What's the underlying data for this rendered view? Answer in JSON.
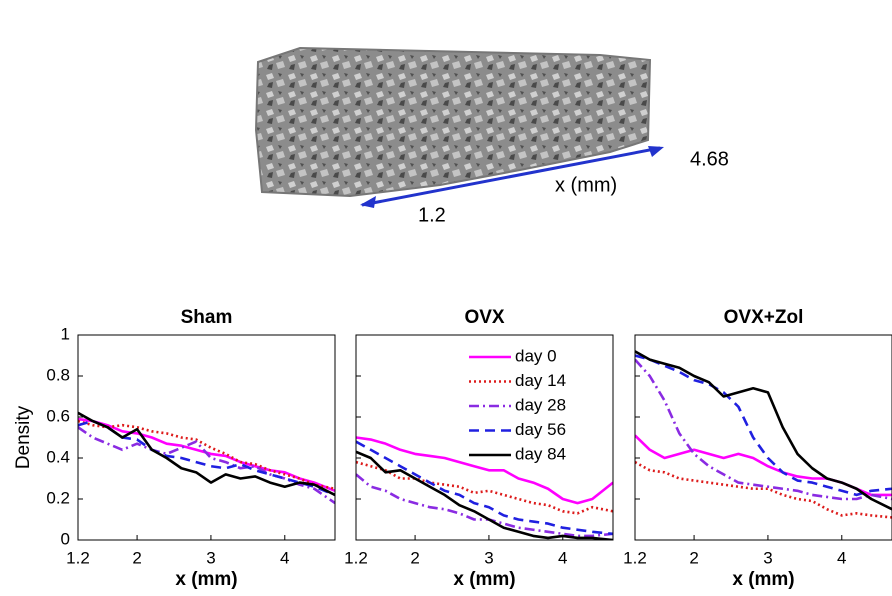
{
  "specimen": {
    "axis_label": "x (mm)",
    "start": 1.2,
    "end": 4.68
  },
  "chart_data": [
    {
      "type": "line",
      "title": "Sham",
      "xlabel": "x (mm)",
      "ylabel": "Density",
      "x": [
        1.2,
        1.4,
        1.6,
        1.8,
        2.0,
        2.2,
        2.4,
        2.6,
        2.8,
        3.0,
        3.2,
        3.4,
        3.6,
        3.8,
        4.0,
        4.2,
        4.4,
        4.68
      ],
      "xlim": [
        1.2,
        4.68
      ],
      "ylim": [
        0,
        1
      ],
      "xticks": [
        1.2,
        2,
        3,
        4
      ],
      "yticks": [
        0,
        0.2,
        0.4,
        0.6,
        0.8,
        1
      ],
      "show_yticklabels": true,
      "legend": false,
      "series": [
        {
          "color": "#ff00ff",
          "style": "solid",
          "values": [
            0.59,
            0.58,
            0.56,
            0.53,
            0.52,
            0.5,
            0.47,
            0.46,
            0.44,
            0.42,
            0.41,
            0.38,
            0.36,
            0.34,
            0.33,
            0.3,
            0.28,
            0.24
          ]
        },
        {
          "color": "#dd1c1c",
          "style": "dotted",
          "values": [
            0.58,
            0.56,
            0.55,
            0.56,
            0.55,
            0.53,
            0.52,
            0.5,
            0.49,
            0.45,
            0.42,
            0.38,
            0.37,
            0.34,
            0.32,
            0.3,
            0.27,
            0.25
          ]
        },
        {
          "color": "#8a2be2",
          "style": "dashdot",
          "values": [
            0.55,
            0.5,
            0.47,
            0.44,
            0.47,
            0.44,
            0.42,
            0.45,
            0.48,
            0.4,
            0.38,
            0.35,
            0.36,
            0.32,
            0.3,
            0.27,
            0.25,
            0.18
          ]
        },
        {
          "color": "#2020e0",
          "style": "dashed",
          "values": [
            0.56,
            0.58,
            0.55,
            0.5,
            0.49,
            0.44,
            0.41,
            0.4,
            0.38,
            0.36,
            0.35,
            0.37,
            0.34,
            0.32,
            0.3,
            0.28,
            0.26,
            0.22
          ]
        },
        {
          "color": "#000000",
          "style": "solid",
          "values": [
            0.62,
            0.58,
            0.55,
            0.5,
            0.54,
            0.44,
            0.4,
            0.35,
            0.33,
            0.28,
            0.32,
            0.3,
            0.31,
            0.28,
            0.26,
            0.28,
            0.27,
            0.22
          ]
        }
      ]
    },
    {
      "type": "line",
      "title": "OVX",
      "xlabel": "x (mm)",
      "x": [
        1.2,
        1.4,
        1.6,
        1.8,
        2.0,
        2.2,
        2.4,
        2.6,
        2.8,
        3.0,
        3.2,
        3.4,
        3.6,
        3.8,
        4.0,
        4.2,
        4.4,
        4.68
      ],
      "xlim": [
        1.2,
        4.68
      ],
      "ylim": [
        0,
        1
      ],
      "xticks": [
        1.2,
        2,
        3,
        4
      ],
      "yticks": [
        0,
        0.2,
        0.4,
        0.6,
        0.8,
        1
      ],
      "show_yticklabels": false,
      "legend": true,
      "series": [
        {
          "name": "day 0",
          "color": "#ff00ff",
          "style": "solid",
          "values": [
            0.5,
            0.49,
            0.47,
            0.44,
            0.42,
            0.41,
            0.4,
            0.38,
            0.36,
            0.34,
            0.34,
            0.3,
            0.28,
            0.25,
            0.2,
            0.18,
            0.2,
            0.28
          ]
        },
        {
          "name": "day 14",
          "color": "#dd1c1c",
          "style": "dotted",
          "values": [
            0.38,
            0.36,
            0.34,
            0.3,
            0.3,
            0.28,
            0.27,
            0.26,
            0.23,
            0.24,
            0.22,
            0.2,
            0.18,
            0.17,
            0.14,
            0.13,
            0.16,
            0.14
          ]
        },
        {
          "name": "day 28",
          "color": "#8a2be2",
          "style": "dashdot",
          "values": [
            0.32,
            0.26,
            0.24,
            0.2,
            0.18,
            0.16,
            0.15,
            0.13,
            0.1,
            0.1,
            0.08,
            0.06,
            0.05,
            0.04,
            0.03,
            0.02,
            0.02,
            0.03
          ]
        },
        {
          "name": "day 56",
          "color": "#2020e0",
          "style": "dashed",
          "values": [
            0.48,
            0.44,
            0.4,
            0.36,
            0.32,
            0.28,
            0.24,
            0.22,
            0.18,
            0.16,
            0.12,
            0.1,
            0.09,
            0.08,
            0.06,
            0.05,
            0.04,
            0.03
          ]
        },
        {
          "name": "day 84",
          "color": "#000000",
          "style": "solid",
          "values": [
            0.43,
            0.4,
            0.33,
            0.34,
            0.3,
            0.26,
            0.22,
            0.17,
            0.14,
            0.1,
            0.06,
            0.04,
            0.02,
            0.01,
            0.02,
            0.01,
            0.01,
            0.0
          ]
        }
      ]
    },
    {
      "type": "line",
      "title": "OVX+Zol",
      "xlabel": "x (mm)",
      "x": [
        1.2,
        1.4,
        1.6,
        1.8,
        2.0,
        2.2,
        2.4,
        2.6,
        2.8,
        3.0,
        3.2,
        3.4,
        3.6,
        3.8,
        4.0,
        4.2,
        4.4,
        4.68
      ],
      "xlim": [
        1.2,
        4.68
      ],
      "ylim": [
        0,
        1
      ],
      "xticks": [
        1.2,
        2,
        3,
        4
      ],
      "yticks": [
        0,
        0.2,
        0.4,
        0.6,
        0.8,
        1
      ],
      "show_yticklabels": false,
      "legend": false,
      "series": [
        {
          "color": "#ff00ff",
          "style": "solid",
          "values": [
            0.51,
            0.44,
            0.4,
            0.42,
            0.44,
            0.42,
            0.4,
            0.42,
            0.4,
            0.36,
            0.33,
            0.31,
            0.3,
            0.3,
            0.28,
            0.25,
            0.22,
            0.22
          ]
        },
        {
          "color": "#dd1c1c",
          "style": "dotted",
          "values": [
            0.38,
            0.34,
            0.33,
            0.3,
            0.29,
            0.28,
            0.27,
            0.26,
            0.25,
            0.25,
            0.22,
            0.2,
            0.19,
            0.15,
            0.12,
            0.13,
            0.12,
            0.11
          ]
        },
        {
          "color": "#8a2be2",
          "style": "dashdot",
          "values": [
            0.88,
            0.8,
            0.68,
            0.52,
            0.42,
            0.36,
            0.32,
            0.28,
            0.27,
            0.26,
            0.25,
            0.24,
            0.22,
            0.21,
            0.2,
            0.2,
            0.22,
            0.2
          ]
        },
        {
          "color": "#2020e0",
          "style": "dashed",
          "values": [
            0.9,
            0.88,
            0.85,
            0.82,
            0.78,
            0.76,
            0.72,
            0.65,
            0.5,
            0.4,
            0.33,
            0.29,
            0.28,
            0.26,
            0.24,
            0.22,
            0.24,
            0.25
          ]
        },
        {
          "color": "#000000",
          "style": "solid",
          "values": [
            0.92,
            0.88,
            0.86,
            0.84,
            0.8,
            0.77,
            0.7,
            0.72,
            0.74,
            0.72,
            0.55,
            0.42,
            0.35,
            0.3,
            0.28,
            0.25,
            0.2,
            0.15
          ]
        }
      ]
    }
  ]
}
